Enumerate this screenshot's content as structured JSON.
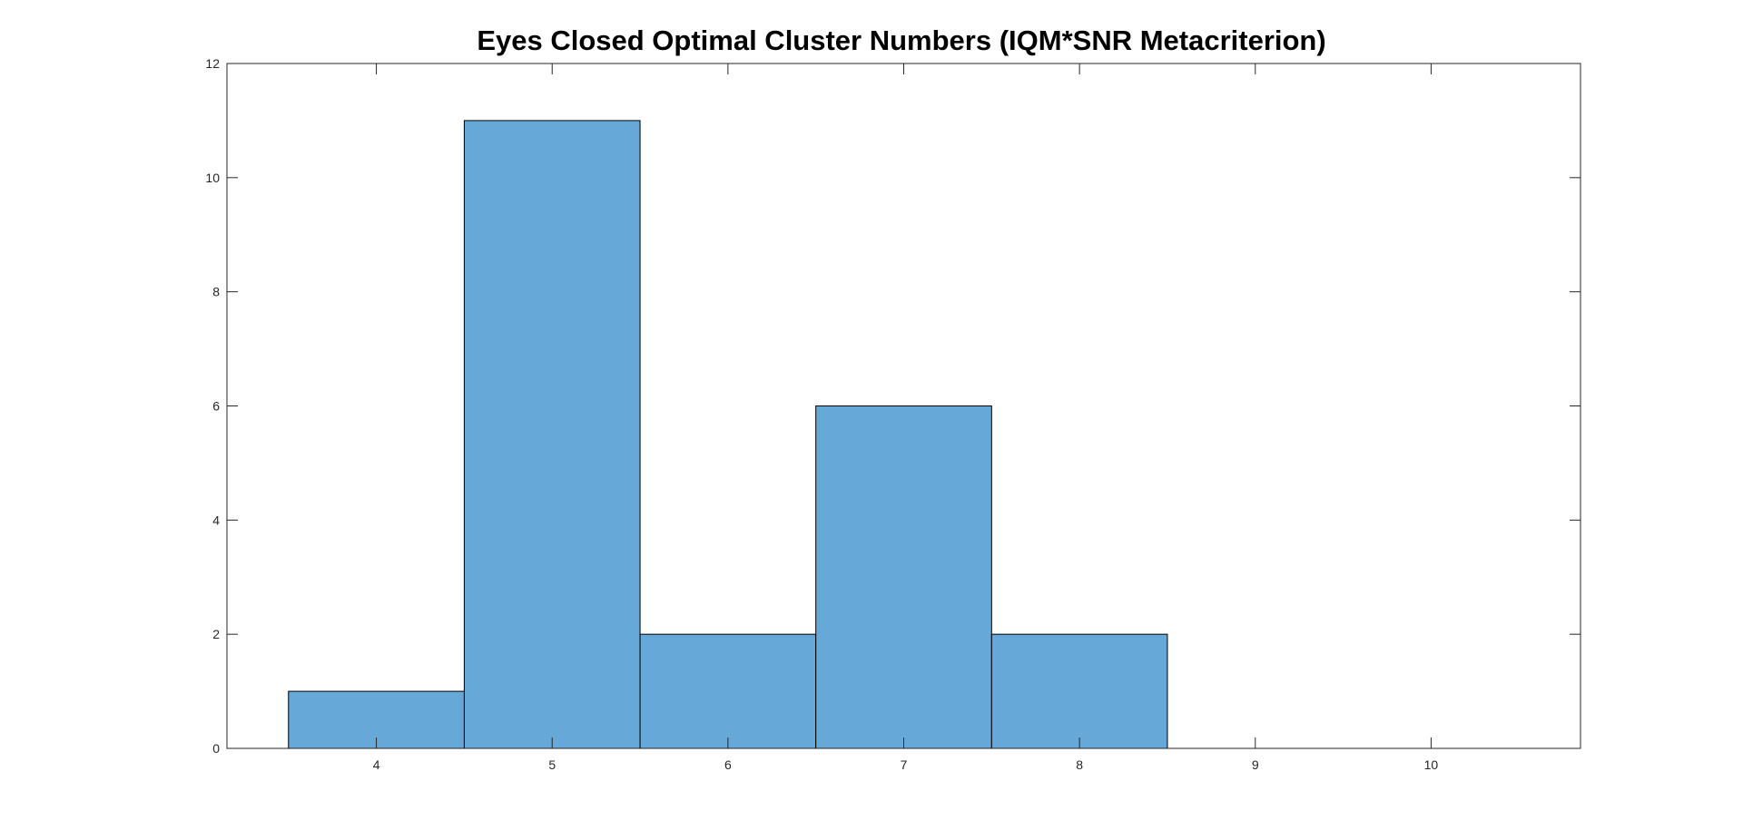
{
  "chart_data": {
    "type": "bar",
    "title": "Eyes Closed Optimal Cluster Numbers (IQM*SNR Metacriterion)",
    "xlabel": "",
    "ylabel": "",
    "x_ticks": [
      4,
      5,
      6,
      7,
      8,
      9,
      10
    ],
    "x_tick_labels": [
      "4",
      "5",
      "6",
      "7",
      "8",
      "9",
      "10"
    ],
    "y_ticks": [
      0,
      2,
      4,
      6,
      8,
      10,
      12
    ],
    "y_tick_labels": [
      "0",
      "2",
      "4",
      "6",
      "8",
      "10",
      "12"
    ],
    "xlim": [
      3.15,
      10.85
    ],
    "ylim": [
      0,
      12
    ],
    "bin_edges": [
      3.5,
      4.5,
      5.5,
      6.5,
      7.5,
      8.5
    ],
    "values": [
      1,
      11,
      2,
      6,
      2
    ],
    "bar_color": "#66a9d8",
    "edge_color": "#000000",
    "grid": false,
    "legend": "none"
  }
}
